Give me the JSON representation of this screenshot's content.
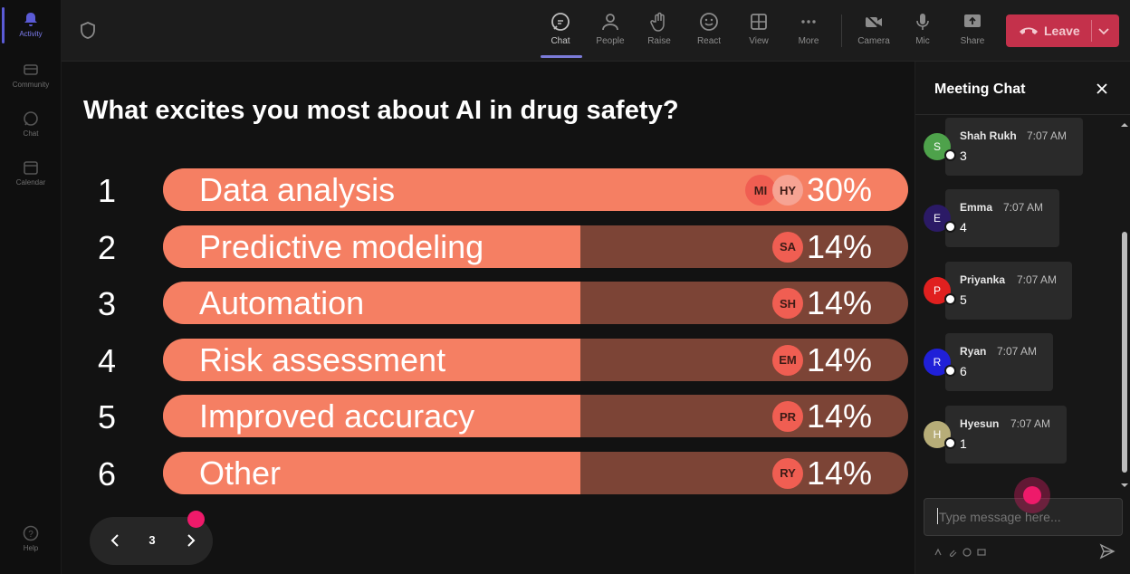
{
  "rail": {
    "items": [
      {
        "label": "Activity",
        "icon": "bell-icon"
      },
      {
        "label": "Community",
        "icon": "community-icon"
      },
      {
        "label": "Chat",
        "icon": "chat-icon"
      },
      {
        "label": "Calendar",
        "icon": "calendar-icon"
      },
      {
        "label": "Help",
        "icon": "help-icon"
      }
    ]
  },
  "toolbar": {
    "chat": "Chat",
    "people": "People",
    "raise": "Raise",
    "react": "React",
    "view": "View",
    "more": "More",
    "camera": "Camera",
    "mic": "Mic",
    "share": "Share",
    "leave": "Leave"
  },
  "poll": {
    "question": "What excites you most about AI in drug safety?",
    "options": [
      {
        "num": "1",
        "label": "Data analysis",
        "percent_text": "30%",
        "percent": 30,
        "avatars": [
          "MI",
          "HY"
        ]
      },
      {
        "num": "2",
        "label": "Predictive modeling",
        "percent_text": "14%",
        "percent": 14,
        "avatars": [
          "SA"
        ]
      },
      {
        "num": "3",
        "label": "Automation",
        "percent_text": "14%",
        "percent": 14,
        "avatars": [
          "SH"
        ]
      },
      {
        "num": "4",
        "label": "Risk assessment",
        "percent_text": "14%",
        "percent": 14,
        "avatars": [
          "EM"
        ]
      },
      {
        "num": "5",
        "label": "Improved accuracy",
        "percent_text": "14%",
        "percent": 14,
        "avatars": [
          "PR"
        ]
      },
      {
        "num": "6",
        "label": "Other",
        "percent_text": "14%",
        "percent": 14,
        "avatars": [
          "RY"
        ]
      }
    ],
    "pager": {
      "page": "3"
    }
  },
  "chat": {
    "title": "Meeting Chat",
    "messages": [
      {
        "initial": "S",
        "name": "Shah Rukh",
        "time": "7:07 AM",
        "text": "3",
        "color": "#4ea24b"
      },
      {
        "initial": "E",
        "name": "Emma",
        "time": "7:07 AM",
        "text": "4",
        "color": "#2b1a66"
      },
      {
        "initial": "P",
        "name": "Priyanka",
        "time": "7:07 AM",
        "text": "5",
        "color": "#e0201f"
      },
      {
        "initial": "R",
        "name": "Ryan",
        "time": "7:07 AM",
        "text": "6",
        "color": "#2020d8"
      },
      {
        "initial": "H",
        "name": "Hyesun",
        "time": "7:07 AM",
        "text": "1",
        "color": "#b7ad78"
      }
    ],
    "input_placeholder": "Type message here..."
  },
  "colors": {
    "bar_fill": "#f57f63",
    "bar_track": "#7c4436",
    "leave": "#c4314b",
    "accent": "#5b5bd6",
    "pointer": "#ee1a6a"
  }
}
